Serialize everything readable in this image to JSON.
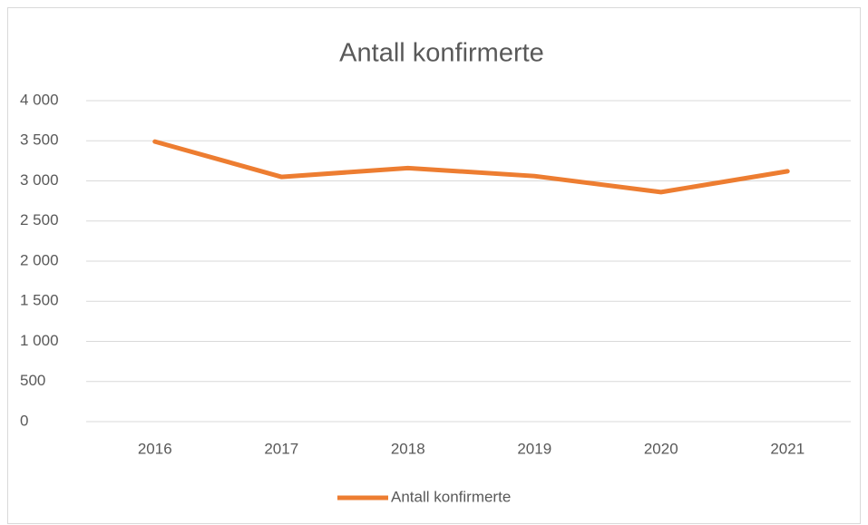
{
  "chart_data": {
    "type": "line",
    "title": "Antall konfirmerte",
    "categories": [
      "2016",
      "2017",
      "2018",
      "2019",
      "2020",
      "2021"
    ],
    "series": [
      {
        "name": "Antall konfirmerte",
        "color": "#ed7d31",
        "values": [
          3490,
          3050,
          3160,
          3060,
          2860,
          3120
        ]
      }
    ],
    "ylim": [
      0,
      4000
    ],
    "yticks": [
      0,
      500,
      {
        "value": 1000,
        "label": "1 000"
      },
      {
        "value": 1500,
        "label": "1 500"
      },
      {
        "value": 2000,
        "label": "2 000"
      },
      {
        "value": 2500,
        "label": "2 500"
      },
      {
        "value": 3000,
        "label": "3 000"
      },
      {
        "value": 3500,
        "label": "3 500"
      },
      {
        "value": 4000,
        "label": "4 000"
      }
    ],
    "grid": true,
    "legend": "bottom"
  }
}
